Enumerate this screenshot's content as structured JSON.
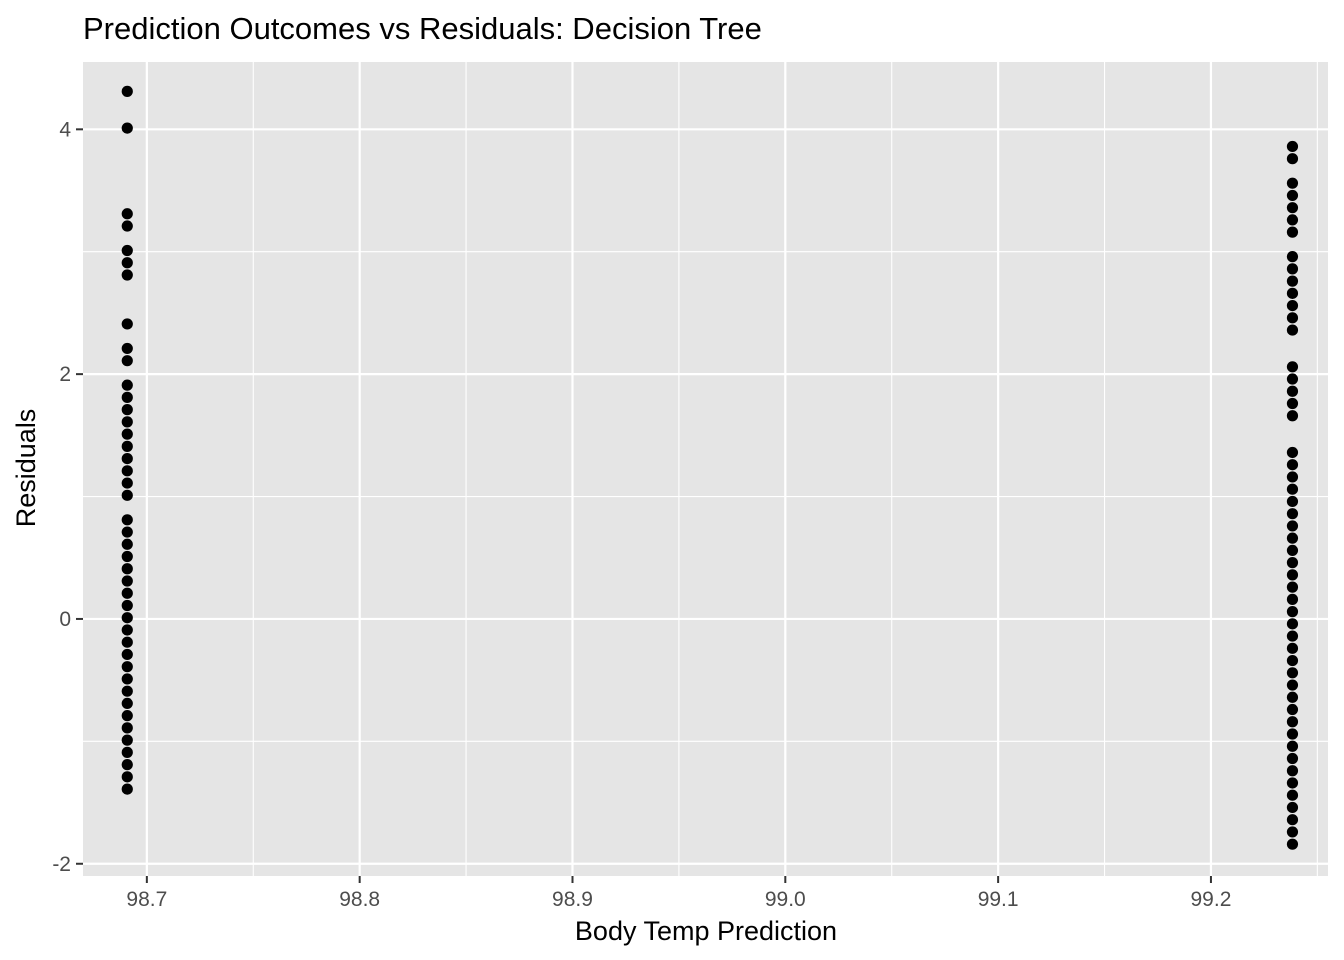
{
  "chart_data": {
    "type": "scatter",
    "title": "Prediction Outcomes vs Residuals: Decision Tree",
    "xlabel": "Body Temp Prediction",
    "ylabel": "Residuals",
    "xlim": [
      98.67,
      99.255
    ],
    "ylim": [
      -2.1,
      4.55
    ],
    "x_ticks": [
      98.7,
      98.8,
      98.9,
      99.0,
      99.1,
      99.2
    ],
    "x_tick_labels": [
      "98.7",
      "98.8",
      "98.9",
      "99.0",
      "99.1",
      "99.2"
    ],
    "y_ticks": [
      -2,
      0,
      2,
      4
    ],
    "y_tick_labels": [
      "-2",
      "0",
      "2",
      "4"
    ],
    "grid": true,
    "background_color": "#e5e5e5",
    "gridline_color": "#ffffff",
    "point_color": "#000000",
    "series": [
      {
        "x": 98.6908,
        "y": [
          4.31,
          4.01,
          3.31,
          3.21,
          3.01,
          2.91,
          2.81,
          2.41,
          2.21,
          2.11,
          1.91,
          1.81,
          1.71,
          1.61,
          1.51,
          1.41,
          1.31,
          1.21,
          1.11,
          1.01,
          0.81,
          0.71,
          0.61,
          0.51,
          0.41,
          0.31,
          0.21,
          0.11,
          0.01,
          -0.09,
          -0.19,
          -0.29,
          -0.39,
          -0.49,
          -0.59,
          -0.69,
          -0.79,
          -0.89,
          -0.99,
          -1.09,
          -1.19,
          -1.29,
          -1.39
        ]
      },
      {
        "x": 99.2383,
        "y": [
          3.86,
          3.76,
          3.56,
          3.46,
          3.36,
          3.26,
          3.16,
          2.96,
          2.86,
          2.76,
          2.66,
          2.56,
          2.46,
          2.36,
          2.06,
          1.96,
          1.86,
          1.76,
          1.66,
          1.36,
          1.26,
          1.16,
          1.06,
          0.96,
          0.86,
          0.76,
          0.66,
          0.56,
          0.46,
          0.36,
          0.26,
          0.16,
          0.06,
          -0.04,
          -0.14,
          -0.24,
          -0.34,
          -0.44,
          -0.54,
          -0.64,
          -0.74,
          -0.84,
          -0.94,
          -1.04,
          -1.14,
          -1.24,
          -1.34,
          -1.44,
          -1.54,
          -1.64,
          -1.74,
          -1.84
        ]
      }
    ]
  }
}
